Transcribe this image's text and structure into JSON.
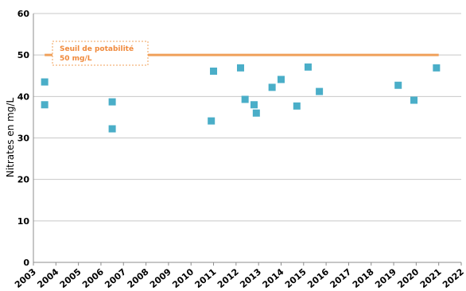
{
  "chart_data": {
    "type": "scatter",
    "ylabel": "Nitrates en mg/L",
    "xlim": [
      2003,
      2022
    ],
    "ylim": [
      0,
      60
    ],
    "yticks": [
      "0",
      "10",
      "20",
      "30",
      "40",
      "50",
      "60"
    ],
    "xticks": [
      "2003",
      "2004",
      "2005",
      "2006",
      "2007",
      "2008",
      "2009",
      "2010",
      "2011",
      "2012",
      "2013",
      "2014",
      "2015",
      "2016",
      "2017",
      "2018",
      "2019",
      "2020",
      "2021",
      "2022"
    ],
    "grid": "horizontal",
    "threshold": {
      "value": 50,
      "label_line1": "Seuil de potabilité",
      "label_line2": "50 mg/L",
      "color": "#f0a05a"
    },
    "marker_color": "#4aaec8",
    "points": [
      {
        "x": 2003.5,
        "y": 43.5
      },
      {
        "x": 2003.5,
        "y": 38.0
      },
      {
        "x": 2006.5,
        "y": 38.7
      },
      {
        "x": 2006.5,
        "y": 32.2
      },
      {
        "x": 2010.9,
        "y": 34.1
      },
      {
        "x": 2011.0,
        "y": 46.1
      },
      {
        "x": 2012.2,
        "y": 46.9
      },
      {
        "x": 2012.4,
        "y": 39.3
      },
      {
        "x": 2012.8,
        "y": 38.0
      },
      {
        "x": 2012.9,
        "y": 36.0
      },
      {
        "x": 2013.6,
        "y": 42.2
      },
      {
        "x": 2014.0,
        "y": 44.1
      },
      {
        "x": 2014.7,
        "y": 37.7
      },
      {
        "x": 2015.2,
        "y": 47.1
      },
      {
        "x": 2015.7,
        "y": 41.2
      },
      {
        "x": 2019.2,
        "y": 42.7
      },
      {
        "x": 2019.9,
        "y": 39.1
      },
      {
        "x": 2020.9,
        "y": 46.9
      }
    ]
  }
}
